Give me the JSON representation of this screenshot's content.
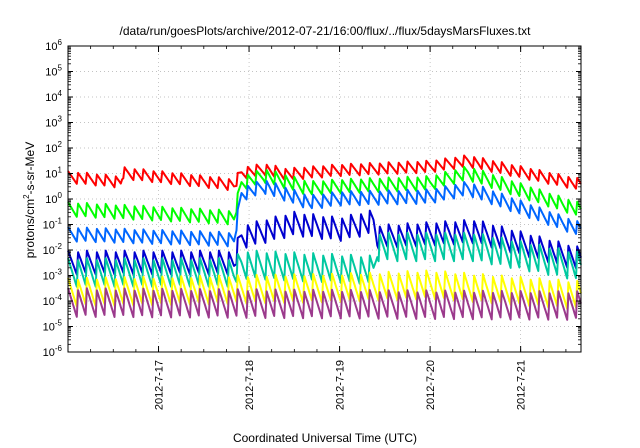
{
  "chart_data": {
    "type": "line",
    "title": "/data/run/goesPlots/archive/2012-07-21/16:00/flux/../flux/5daysMarsFluxes.txt",
    "xlabel": "Coordinated Universal Time (UTC)",
    "ylabel_main": "protons/cm",
    "ylabel_sup": "2",
    "ylabel_rest": "-s-sr-MeV",
    "ylim": [
      1e-06,
      1000000.0
    ],
    "yscale": "log",
    "y_tick_exponents": [
      -6,
      -5,
      -4,
      -3,
      -2,
      -1,
      0,
      1,
      2,
      3,
      4,
      5,
      6
    ],
    "y_tick_base": "10",
    "xlim": [
      "2012-07-16",
      "2012-07-21 16:00"
    ],
    "x_ticks": [
      {
        "value": "2012-07-17",
        "label": "2012-7-17"
      },
      {
        "value": "2012-07-18",
        "label": "2012-7-18"
      },
      {
        "value": "2012-07-19",
        "label": "2012-7-19"
      },
      {
        "value": "2012-07-20",
        "label": "2012-7-20"
      },
      {
        "value": "2012-07-21",
        "label": "2012-7-21"
      }
    ],
    "grid": true,
    "series": [
      {
        "color": "#ff0000",
        "points": [
          [
            "2012-07-16",
            7
          ],
          [
            "2012-07-16 14:00",
            4.5
          ],
          [
            "2012-07-16 14:30",
            10
          ],
          [
            "2012-07-17 20:00",
            3.5
          ],
          [
            "2012-07-17 22:00",
            10
          ],
          [
            "2012-07-18 04:00",
            14
          ],
          [
            "2012-07-18 10:00",
            9
          ],
          [
            "2012-07-19 00:00",
            13
          ],
          [
            "2012-07-20 00:00",
            18
          ],
          [
            "2012-07-20 10:00",
            30
          ],
          [
            "2012-07-21 16:00",
            3.5
          ]
        ],
        "osc": 0.25,
        "period_hours": 2.5
      },
      {
        "color": "#00ff00",
        "points": [
          [
            "2012-07-16",
            0.38
          ],
          [
            "2012-07-17 20:00",
            0.18
          ],
          [
            "2012-07-17 22:00",
            4
          ],
          [
            "2012-07-18 04:00",
            8
          ],
          [
            "2012-07-18 16:00",
            2.5
          ],
          [
            "2012-07-19 00:00",
            3
          ],
          [
            "2012-07-20 00:00",
            4
          ],
          [
            "2012-07-20 10:00",
            10
          ],
          [
            "2012-07-21 16:00",
            0.35
          ]
        ],
        "osc": 0.3,
        "period_hours": 2.5
      },
      {
        "color": "#0066ff",
        "points": [
          [
            "2012-07-16",
            0.04
          ],
          [
            "2012-07-17 20:00",
            0.025
          ],
          [
            "2012-07-17 22:00",
            1.5
          ],
          [
            "2012-07-18 04:00",
            3
          ],
          [
            "2012-07-18 16:00",
            0.7
          ],
          [
            "2012-07-19 00:00",
            1
          ],
          [
            "2012-07-20 00:00",
            1.2
          ],
          [
            "2012-07-20 10:00",
            2.5
          ],
          [
            "2012-07-21 16:00",
            0.06
          ]
        ],
        "osc": 0.3,
        "period_hours": 2.5
      },
      {
        "color": "#0000d0",
        "points": [
          [
            "2012-07-16",
            0.003
          ],
          [
            "2012-07-17 20:00",
            0.003
          ],
          [
            "2012-07-17 22:00",
            0.03
          ],
          [
            "2012-07-18 12:00",
            0.1
          ],
          [
            "2012-07-19 00:00",
            0.06
          ],
          [
            "2012-07-19 09:00",
            0.12
          ],
          [
            "2012-07-19 10:00",
            0.03
          ],
          [
            "2012-07-20 12:00",
            0.05
          ],
          [
            "2012-07-21 16:00",
            0.004
          ]
        ],
        "osc": 0.5,
        "period_hours": 2.5
      },
      {
        "color": "#00c8a0",
        "points": [
          [
            "2012-07-16",
            0.0012
          ],
          [
            "2012-07-17 20:00",
            0.0012
          ],
          [
            "2012-07-17 22:00",
            0.0025
          ],
          [
            "2012-07-19 09:00",
            0.0015
          ],
          [
            "2012-07-19 10:00",
            0.012
          ],
          [
            "2012-07-20 12:00",
            0.012
          ],
          [
            "2012-07-21 16:00",
            0.002
          ]
        ],
        "osc": 0.6,
        "period_hours": 2.5
      },
      {
        "color": "#ffff00",
        "points": [
          [
            "2012-07-16",
            0.0002
          ],
          [
            "2012-07-19 00:00",
            0.0003
          ],
          [
            "2012-07-20 00:00",
            0.0004
          ],
          [
            "2012-07-21 16:00",
            0.00015
          ]
        ],
        "osc": 0.6,
        "period_hours": 2.5
      },
      {
        "color": "#9b3a8c",
        "points": [
          [
            "2012-07-16",
            8e-05
          ],
          [
            "2012-07-21 16:00",
            6e-05
          ]
        ],
        "osc": 0.6,
        "period_hours": 2.5
      }
    ]
  }
}
